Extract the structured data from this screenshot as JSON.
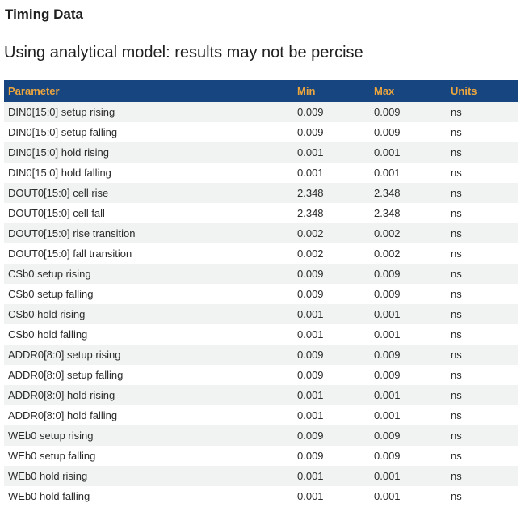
{
  "page": {
    "title": "Timing Data",
    "subtitle": "Using analytical model: results may not be percise"
  },
  "table": {
    "columns": [
      "Parameter",
      "Min",
      "Max",
      "Units"
    ],
    "rows": [
      {
        "parameter": "DIN0[15:0] setup rising",
        "min": "0.009",
        "max": "0.009",
        "units": "ns"
      },
      {
        "parameter": "DIN0[15:0] setup falling",
        "min": "0.009",
        "max": "0.009",
        "units": "ns"
      },
      {
        "parameter": "DIN0[15:0] hold rising",
        "min": "0.001",
        "max": "0.001",
        "units": "ns"
      },
      {
        "parameter": "DIN0[15:0] hold falling",
        "min": "0.001",
        "max": "0.001",
        "units": "ns"
      },
      {
        "parameter": "DOUT0[15:0] cell rise",
        "min": "2.348",
        "max": "2.348",
        "units": "ns"
      },
      {
        "parameter": "DOUT0[15:0] cell fall",
        "min": "2.348",
        "max": "2.348",
        "units": "ns"
      },
      {
        "parameter": "DOUT0[15:0] rise transition",
        "min": "0.002",
        "max": "0.002",
        "units": "ns"
      },
      {
        "parameter": "DOUT0[15:0] fall transition",
        "min": "0.002",
        "max": "0.002",
        "units": "ns"
      },
      {
        "parameter": "CSb0 setup rising",
        "min": "0.009",
        "max": "0.009",
        "units": "ns"
      },
      {
        "parameter": "CSb0 setup falling",
        "min": "0.009",
        "max": "0.009",
        "units": "ns"
      },
      {
        "parameter": "CSb0 hold rising",
        "min": "0.001",
        "max": "0.001",
        "units": "ns"
      },
      {
        "parameter": "CSb0 hold falling",
        "min": "0.001",
        "max": "0.001",
        "units": "ns"
      },
      {
        "parameter": "ADDR0[8:0] setup rising",
        "min": "0.009",
        "max": "0.009",
        "units": "ns"
      },
      {
        "parameter": "ADDR0[8:0] setup falling",
        "min": "0.009",
        "max": "0.009",
        "units": "ns"
      },
      {
        "parameter": "ADDR0[8:0] hold rising",
        "min": "0.001",
        "max": "0.001",
        "units": "ns"
      },
      {
        "parameter": "ADDR0[8:0] hold falling",
        "min": "0.001",
        "max": "0.001",
        "units": "ns"
      },
      {
        "parameter": "WEb0 setup rising",
        "min": "0.009",
        "max": "0.009",
        "units": "ns"
      },
      {
        "parameter": "WEb0 setup falling",
        "min": "0.009",
        "max": "0.009",
        "units": "ns"
      },
      {
        "parameter": "WEb0 hold rising",
        "min": "0.001",
        "max": "0.001",
        "units": "ns"
      },
      {
        "parameter": "WEb0 hold falling",
        "min": "0.001",
        "max": "0.001",
        "units": "ns"
      }
    ]
  },
  "colors": {
    "header_background": "#16457f",
    "header_text": "#eda63e",
    "row_alternate_background": "#f1f2f2",
    "row_background": "#ffffff",
    "body_text": "#2b2b2b",
    "heading_text": "#1f1f1f"
  }
}
